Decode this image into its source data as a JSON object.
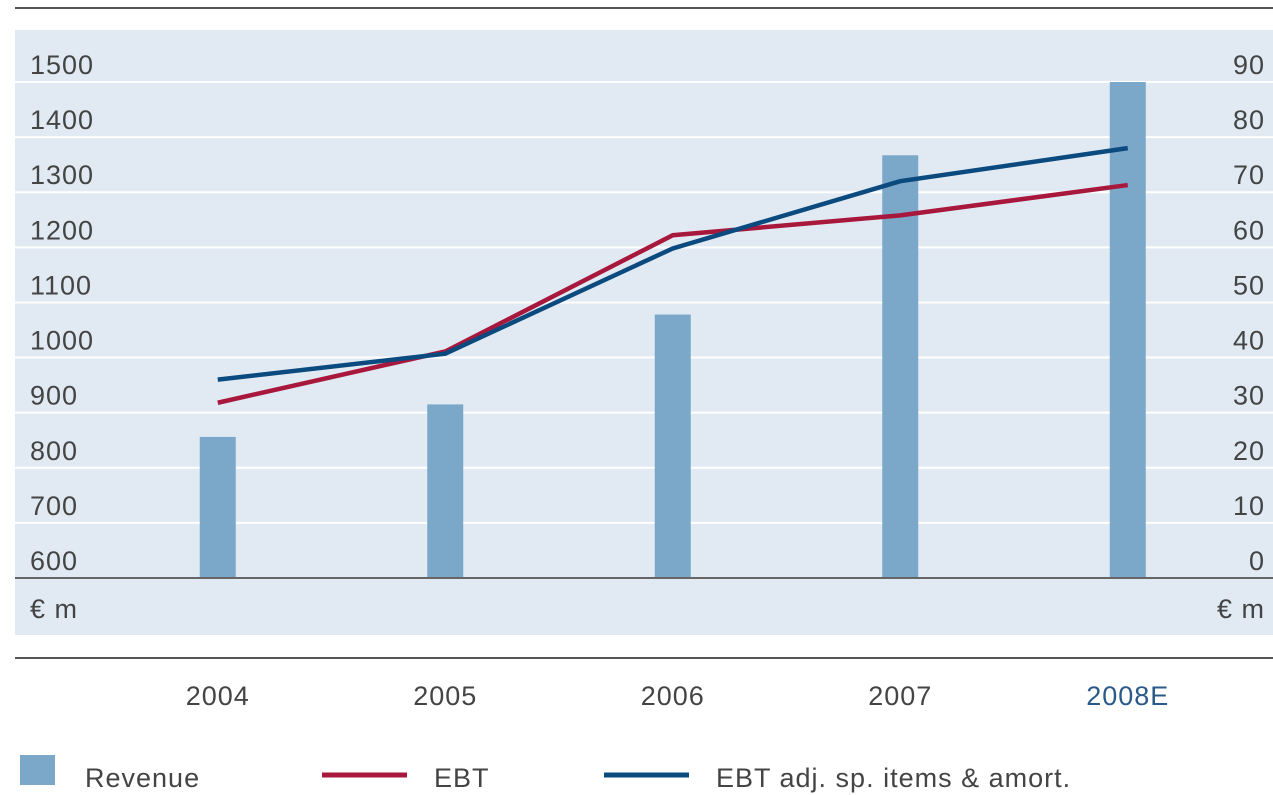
{
  "chart_data": {
    "type": "bar_line",
    "categories": [
      "2004",
      "2005",
      "2006",
      "2007",
      "2008E"
    ],
    "category_colors": [
      "#444444",
      "#444444",
      "#444444",
      "#444444",
      "#2a5a8a"
    ],
    "series": [
      {
        "name": "Revenue",
        "type": "bar",
        "color": "#7ba7c9",
        "values": [
          856,
          915,
          1078,
          1367,
          1500
        ]
      },
      {
        "name": "EBT",
        "type": "line",
        "axis": "y2",
        "color": "#a8183c",
        "values": [
          31.8,
          41.1,
          62.2,
          65.8,
          71.3
        ]
      },
      {
        "name": "EBT adj. sp. items & amort.",
        "type": "line",
        "axis": "y2",
        "color": "#0b4a7e",
        "values": [
          36,
          40.7,
          59.8,
          72,
          78
        ]
      }
    ],
    "ylim": [
      600,
      1500
    ],
    "yticks": [
      600,
      700,
      800,
      900,
      1000,
      1100,
      1200,
      1300,
      1400,
      1500
    ],
    "y2lim": [
      0,
      90
    ],
    "y2ticks": [
      0,
      10,
      20,
      30,
      40,
      50,
      60,
      70,
      80,
      90
    ],
    "y_label": "€ m",
    "y2_label": "€ m",
    "grid": true
  }
}
